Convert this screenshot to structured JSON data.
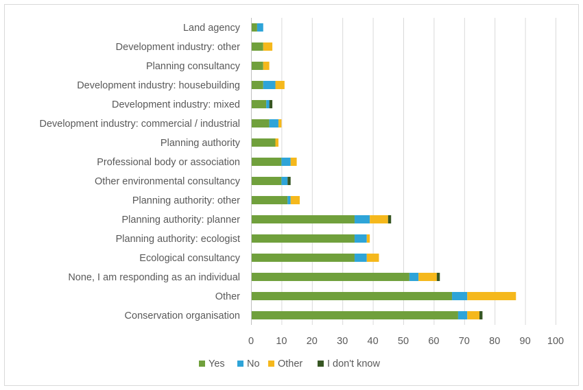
{
  "chart_data": {
    "type": "bar",
    "orientation": "horizontal",
    "stacked": true,
    "title": "",
    "xlabel": "",
    "ylabel": "",
    "xlim": [
      0,
      100
    ],
    "x_ticks": [
      0,
      10,
      20,
      30,
      40,
      50,
      60,
      70,
      80,
      90,
      100
    ],
    "grid": "vertical",
    "legend_position": "bottom",
    "categories": [
      "Land agency",
      "Development industry: other",
      "Planning consultancy",
      "Development industry: housebuilding",
      "Development industry: mixed",
      "Development industry: commercial / industrial",
      "Planning authority",
      "Professional body or association",
      "Other environmental consultancy",
      "Planning authority: other",
      "Planning authority: planner",
      "Planning authority: ecologist",
      "Ecological consultancy",
      "None, I am responding as an individual",
      "Other",
      "Conservation organisation"
    ],
    "series": [
      {
        "name": "Yes",
        "color": "#70a03c",
        "values": [
          2,
          4,
          4,
          4,
          5,
          6,
          8,
          10,
          10,
          12,
          34,
          34,
          34,
          52,
          66,
          68
        ]
      },
      {
        "name": "No",
        "color": "#2ea4d8",
        "values": [
          2,
          0,
          0,
          4,
          1,
          3,
          0,
          3,
          2,
          1,
          5,
          4,
          4,
          3,
          5,
          3
        ]
      },
      {
        "name": "Other",
        "color": "#f5b81c",
        "values": [
          0,
          3,
          2,
          3,
          0,
          1,
          1,
          2,
          0,
          3,
          6,
          1,
          4,
          6,
          16,
          4
        ]
      },
      {
        "name": "I don't know",
        "color": "#375623",
        "values": [
          0,
          0,
          0,
          0,
          1,
          0,
          0,
          0,
          1,
          0,
          1,
          0,
          0,
          1,
          0,
          1
        ]
      }
    ]
  }
}
